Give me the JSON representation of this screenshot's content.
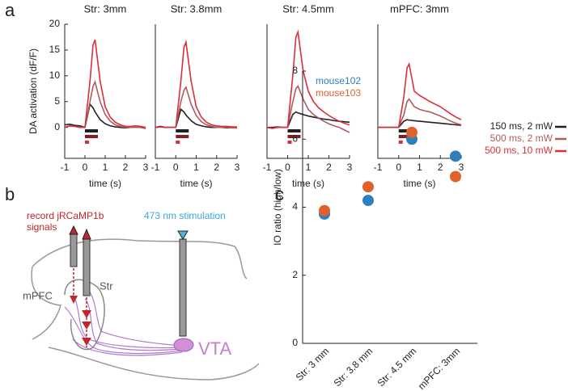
{
  "panel_labels": [
    "a",
    "b",
    "c"
  ],
  "diagram": {
    "record_label": [
      "record jRCaMP1b",
      "signals"
    ],
    "stim_label": "473 nm stimulation",
    "mpfc": "mPFC",
    "str": "Str",
    "vta": "VTA"
  },
  "chart_data": [
    {
      "type": "line",
      "title": "Str: 3mm",
      "x_label": "time (s)",
      "y_label": "DA activation (dF/F)",
      "x": [
        -1,
        -0.75,
        -0.5,
        -0.25,
        0,
        0.25,
        0.4,
        0.5,
        0.75,
        1,
        1.25,
        1.5,
        1.75,
        2,
        2.25,
        2.5,
        2.75,
        3
      ],
      "xlim": [
        -1,
        3
      ],
      "xticks": [
        -1,
        0,
        1,
        2,
        3
      ],
      "ylim": [
        -6,
        20
      ],
      "yticks": [
        0,
        5,
        10,
        15,
        20
      ],
      "series": [
        {
          "color": "#231f20",
          "values": [
            0.5,
            0.6,
            0.4,
            0.3,
            0,
            4.5,
            3.8,
            3,
            1.5,
            0.7,
            0.3,
            0.1,
            0,
            -0.1,
            0,
            0,
            0,
            -0.2
          ]
        },
        {
          "color": "#b05b5e",
          "values": [
            0,
            0.3,
            0.2,
            0,
            0,
            5,
            8,
            8.8,
            5,
            2.5,
            1.2,
            0.5,
            0.2,
            0,
            0,
            0,
            0,
            -0.2
          ]
        },
        {
          "color": "#d7303a",
          "values": [
            0,
            0.3,
            0.2,
            0,
            0,
            9,
            16,
            17,
            9,
            4,
            2,
            1,
            0.5,
            0.2,
            0.2,
            0.3,
            0.2,
            0
          ]
        }
      ]
    },
    {
      "type": "line",
      "title": "Str: 3.8mm",
      "x_label": "time (s)",
      "x": [
        -1,
        -0.75,
        -0.5,
        -0.25,
        0,
        0.25,
        0.4,
        0.5,
        0.75,
        1,
        1.25,
        1.5,
        1.75,
        2,
        2.25,
        2.5,
        2.75,
        3
      ],
      "xlim": [
        -1,
        3
      ],
      "xticks": [
        -1,
        0,
        1,
        2,
        3
      ],
      "ylim": [
        -6,
        20
      ],
      "series": [
        {
          "color": "#231f20",
          "values": [
            0,
            0.2,
            0,
            0,
            0,
            3.5,
            3,
            2.4,
            1.3,
            0.6,
            0.3,
            0.1,
            0,
            0,
            0,
            -0.1,
            0,
            0
          ]
        },
        {
          "color": "#b05b5e",
          "values": [
            0,
            0.1,
            0,
            0,
            0,
            5,
            7.2,
            7.8,
            4.5,
            2.3,
            1.1,
            0.5,
            0.2,
            0,
            0,
            0,
            -0.1,
            -0.1
          ]
        },
        {
          "color": "#d7303a",
          "values": [
            0,
            0.1,
            0,
            0,
            0,
            9,
            15.5,
            16.5,
            9,
            4,
            2,
            1,
            0.5,
            0.3,
            0.2,
            0.2,
            0.1,
            0.1
          ]
        }
      ]
    },
    {
      "type": "line",
      "title": "Str: 4.5mm",
      "x_label": "time (s)",
      "x": [
        -1,
        -0.75,
        -0.5,
        -0.25,
        0,
        0.25,
        0.4,
        0.5,
        0.75,
        1,
        1.25,
        1.5,
        1.75,
        2,
        2.25,
        2.5,
        2.75,
        3
      ],
      "xlim": [
        -1,
        3
      ],
      "xticks": [
        -1,
        0,
        1,
        2,
        3
      ],
      "ylim": [
        -6,
        20
      ],
      "series": [
        {
          "color": "#231f20",
          "values": [
            0,
            0,
            0.1,
            0,
            0,
            2.5,
            3,
            2.8,
            2.5,
            2.2,
            2,
            1.8,
            1.6,
            1.5,
            1.3,
            1.2,
            1.1,
            1
          ]
        },
        {
          "color": "#b05b5e",
          "values": [
            0,
            -0.2,
            0,
            0,
            0,
            5,
            7.5,
            8,
            5.5,
            3.5,
            2.5,
            1.8,
            1.2,
            0.7,
            0.3,
            0,
            -0.5,
            -1
          ]
        },
        {
          "color": "#d7303a",
          "values": [
            0,
            -0.2,
            0,
            0,
            0,
            10,
            17.5,
            18.5,
            11,
            7,
            5,
            3.8,
            3,
            2.3,
            1.7,
            1.2,
            0.8,
            0.5
          ]
        }
      ]
    },
    {
      "type": "line",
      "title": "mPFC: 3mm",
      "x_label": "time (s)",
      "x": [
        -1,
        -0.75,
        -0.5,
        -0.25,
        0,
        0.25,
        0.4,
        0.5,
        0.75,
        1,
        1.25,
        1.5,
        1.75,
        2,
        2.25,
        2.5,
        2.75,
        3
      ],
      "xlim": [
        -1,
        3
      ],
      "xticks": [
        -1,
        0,
        1,
        2,
        3
      ],
      "ylim": [
        -6,
        20
      ],
      "series": [
        {
          "name": "150 ms, 2 mW",
          "color": "#231f20",
          "values": [
            0,
            0,
            0,
            0,
            0,
            1.2,
            1.5,
            1.4,
            1.3,
            1.2,
            1.1,
            1,
            0.9,
            0.8,
            0.7,
            0.6,
            0.5,
            0.4
          ]
        },
        {
          "name": "500 ms, 2 mW",
          "color": "#b05b5e",
          "values": [
            0,
            0,
            0,
            0,
            0,
            2.5,
            5,
            5.5,
            4,
            3.5,
            3.2,
            3,
            2.6,
            2.2,
            1.7,
            1.2,
            0.8,
            0.5
          ]
        },
        {
          "name": "500 ms, 10 mW",
          "color": "#d7303a",
          "values": [
            0,
            0,
            0,
            0,
            0,
            6,
            11.5,
            12.3,
            7,
            6.2,
            5.6,
            5,
            4.5,
            4,
            3.3,
            2.6,
            2,
            1.5
          ]
        }
      ]
    },
    {
      "type": "scatter",
      "y_label": "IO ratio (high/low)",
      "categories": [
        "Str: 3 mm",
        "Str: 3.8 mm",
        "Str: 4.5 mm",
        "mPFC: 3mm"
      ],
      "ylim": [
        0,
        8
      ],
      "yticks": [
        0,
        2,
        4,
        6,
        8
      ],
      "series": [
        {
          "name": "mouse102",
          "color": "#2e7fc0",
          "values": [
            3.8,
            4.2,
            6.0,
            5.5
          ]
        },
        {
          "name": "mouse103",
          "color": "#e0622a",
          "values": [
            3.9,
            4.6,
            6.2,
            4.9
          ]
        }
      ]
    }
  ]
}
